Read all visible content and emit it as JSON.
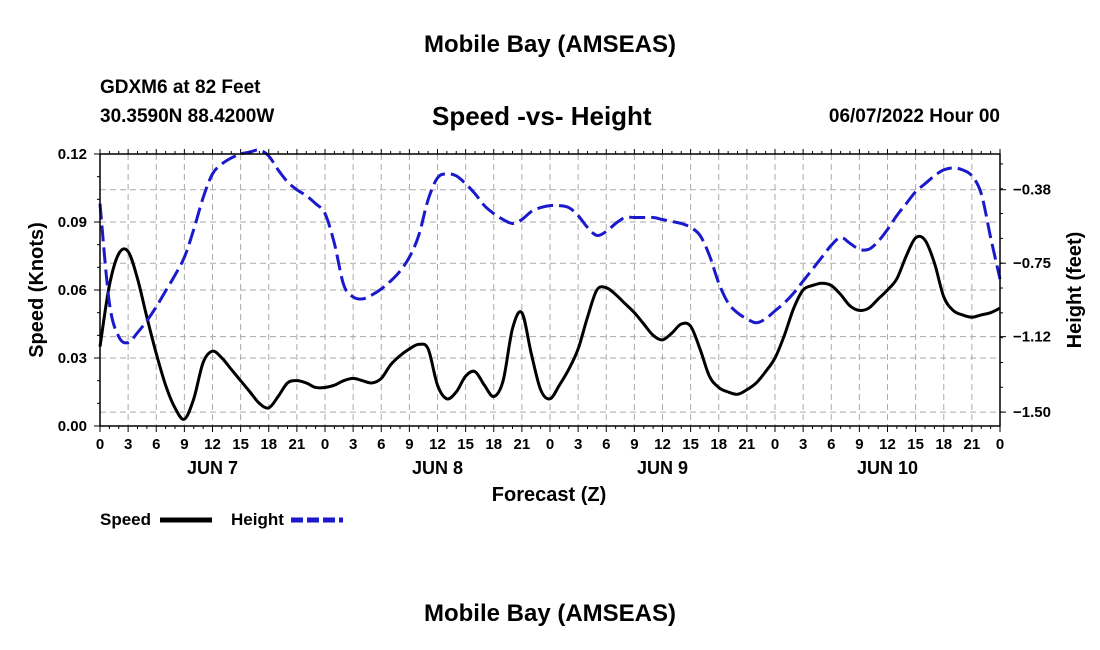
{
  "header": {
    "title": "Mobile Bay (AMSEAS)",
    "station": "GDXM6 at 82 Feet",
    "coords": "30.3590N  88.4200W",
    "subtitle": "Speed -vs- Height",
    "datetime": "06/07/2022 Hour 00",
    "second_title": "Mobile Bay (AMSEAS)"
  },
  "chart_data": {
    "type": "line",
    "title": "Speed -vs- Height",
    "xlabel": "Forecast (Z)",
    "ylabel": "Speed (Knots)",
    "y2label": "Height (feet)",
    "xlim": [
      0,
      96
    ],
    "ylim": [
      0,
      0.12
    ],
    "y2lim": [
      -1.57,
      -0.2
    ],
    "x_tick_labels": [
      "0",
      "3",
      "6",
      "9",
      "12",
      "15",
      "18",
      "21",
      "0",
      "3",
      "6",
      "9",
      "12",
      "15",
      "18",
      "21",
      "0",
      "3",
      "6",
      "9",
      "12",
      "15",
      "18",
      "21",
      "0",
      "3",
      "6",
      "9",
      "12",
      "15",
      "18",
      "21",
      "0"
    ],
    "y_ticks": [
      0,
      0.03,
      0.06,
      0.09,
      0.12
    ],
    "y_tick_labels": [
      "0.00",
      "0.03",
      "0.06",
      "0.09",
      "0.12"
    ],
    "y2_ticks": [
      -1.5,
      -1.12,
      -0.75,
      -0.38
    ],
    "y2_tick_labels": [
      "−1.50",
      "−1.12",
      "−0.75",
      "−0.38"
    ],
    "day_labels": [
      {
        "x": 12,
        "label": "JUN 7"
      },
      {
        "x": 36,
        "label": "JUN 8"
      },
      {
        "x": 60,
        "label": "JUN 9"
      },
      {
        "x": 84,
        "label": "JUN 10"
      }
    ],
    "grid": true,
    "legend": [
      {
        "name": "Speed",
        "color": "#000000",
        "dash": false
      },
      {
        "name": "Height",
        "color": "#1a1acc",
        "dash": true
      }
    ],
    "series": [
      {
        "name": "Speed",
        "axis": "left",
        "color": "#000000",
        "x": [
          0,
          1,
          2,
          3,
          4,
          5,
          6,
          7,
          8,
          9,
          10,
          11,
          12,
          13,
          14,
          15,
          16,
          17,
          18,
          19,
          20,
          21,
          22,
          23,
          24,
          25,
          26,
          27,
          28,
          29,
          30,
          31,
          32,
          33,
          34,
          35,
          36,
          37,
          38,
          39,
          40,
          41,
          42,
          43,
          44,
          45,
          46,
          47,
          48,
          49,
          50,
          51,
          52,
          53,
          54,
          55,
          56,
          57,
          58,
          59,
          60,
          61,
          62,
          63,
          64,
          65,
          66,
          67,
          68,
          69,
          70,
          71,
          72,
          73,
          74,
          75,
          76,
          77,
          78,
          79,
          80,
          81,
          82,
          83,
          84,
          85,
          86,
          87,
          88,
          89,
          90,
          91,
          92,
          93,
          94,
          95,
          96
        ],
        "values": [
          0.035,
          0.062,
          0.076,
          0.077,
          0.065,
          0.048,
          0.032,
          0.018,
          0.008,
          0.003,
          0.012,
          0.028,
          0.033,
          0.03,
          0.025,
          0.02,
          0.015,
          0.01,
          0.008,
          0.013,
          0.019,
          0.02,
          0.019,
          0.017,
          0.017,
          0.018,
          0.02,
          0.021,
          0.02,
          0.019,
          0.021,
          0.027,
          0.031,
          0.034,
          0.036,
          0.034,
          0.018,
          0.012,
          0.015,
          0.022,
          0.024,
          0.018,
          0.013,
          0.02,
          0.043,
          0.05,
          0.032,
          0.016,
          0.012,
          0.018,
          0.025,
          0.034,
          0.048,
          0.06,
          0.061,
          0.058,
          0.054,
          0.05,
          0.045,
          0.04,
          0.038,
          0.041,
          0.045,
          0.044,
          0.034,
          0.022,
          0.017,
          0.015,
          0.014,
          0.016,
          0.019,
          0.024,
          0.03,
          0.04,
          0.052,
          0.06,
          0.062,
          0.063,
          0.062,
          0.058,
          0.053,
          0.051,
          0.052,
          0.056,
          0.06,
          0.065,
          0.075,
          0.083,
          0.082,
          0.072,
          0.057,
          0.051,
          0.049,
          0.048,
          0.049,
          0.05,
          0.052
        ]
      },
      {
        "name": "Height",
        "axis": "right",
        "color": "#1a1acc",
        "x": [
          0,
          1,
          2,
          3,
          4,
          5,
          6,
          7,
          8,
          9,
          10,
          11,
          12,
          13,
          14,
          15,
          16,
          17,
          18,
          19,
          20,
          21,
          22,
          23,
          24,
          25,
          26,
          27,
          28,
          29,
          30,
          31,
          32,
          33,
          34,
          35,
          36,
          37,
          38,
          39,
          40,
          41,
          42,
          43,
          44,
          45,
          46,
          47,
          48,
          49,
          50,
          51,
          52,
          53,
          54,
          55,
          56,
          57,
          58,
          59,
          60,
          61,
          62,
          63,
          64,
          65,
          66,
          67,
          68,
          69,
          70,
          71,
          72,
          73,
          74,
          75,
          76,
          77,
          78,
          79,
          80,
          81,
          82,
          83,
          84,
          85,
          86,
          87,
          88,
          89,
          90,
          91,
          92,
          93,
          94,
          95,
          96
        ],
        "values": [
          -0.45,
          -0.95,
          -1.12,
          -1.15,
          -1.1,
          -1.04,
          -0.97,
          -0.89,
          -0.81,
          -0.72,
          -0.58,
          -0.42,
          -0.3,
          -0.25,
          -0.22,
          -0.2,
          -0.19,
          -0.18,
          -0.21,
          -0.28,
          -0.34,
          -0.38,
          -0.41,
          -0.45,
          -0.5,
          -0.65,
          -0.86,
          -0.92,
          -0.93,
          -0.91,
          -0.88,
          -0.84,
          -0.79,
          -0.72,
          -0.61,
          -0.43,
          -0.32,
          -0.3,
          -0.31,
          -0.35,
          -0.4,
          -0.46,
          -0.5,
          -0.53,
          -0.55,
          -0.53,
          -0.49,
          -0.47,
          -0.46,
          -0.46,
          -0.47,
          -0.51,
          -0.57,
          -0.61,
          -0.59,
          -0.55,
          -0.52,
          -0.52,
          -0.52,
          -0.52,
          -0.53,
          -0.54,
          -0.55,
          -0.57,
          -0.61,
          -0.71,
          -0.85,
          -0.95,
          -1.0,
          -1.03,
          -1.05,
          -1.03,
          -0.99,
          -0.95,
          -0.9,
          -0.84,
          -0.78,
          -0.72,
          -0.66,
          -0.62,
          -0.65,
          -0.68,
          -0.68,
          -0.64,
          -0.58,
          -0.51,
          -0.45,
          -0.39,
          -0.35,
          -0.31,
          -0.28,
          -0.27,
          -0.28,
          -0.31,
          -0.4,
          -0.62,
          -0.83
        ]
      }
    ]
  }
}
